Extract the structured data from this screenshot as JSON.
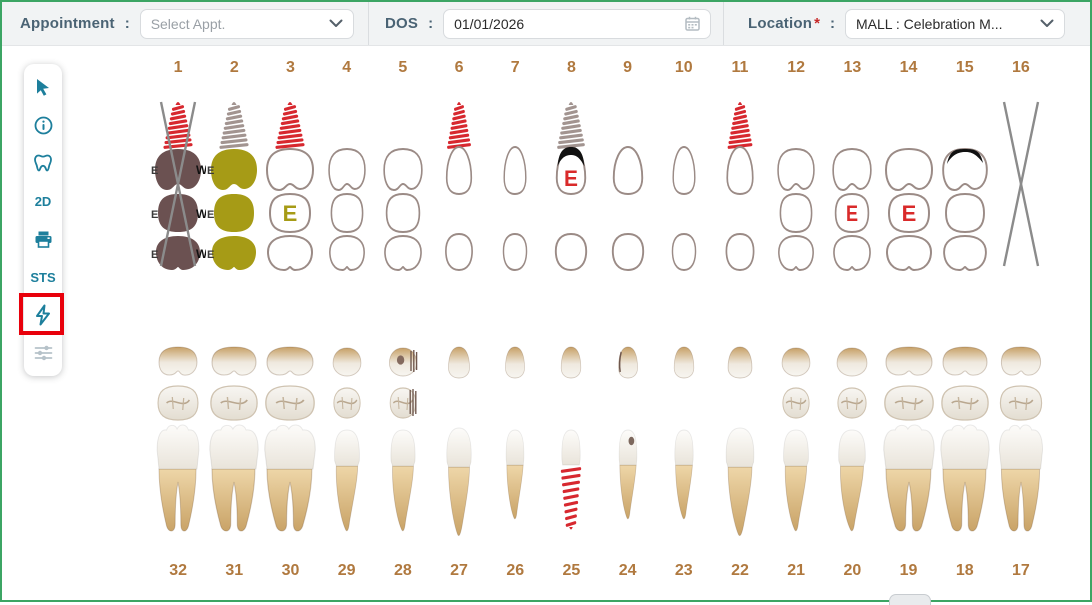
{
  "topbar": {
    "appointment": {
      "label": "Appointment",
      "colon": ":",
      "placeholder": "Select Appt."
    },
    "dos": {
      "label": "DOS",
      "colon": ":",
      "value": "01/01/2026"
    },
    "location": {
      "label": "Location",
      "required_mark": "*",
      "colon": ":",
      "value": "MALL : Celebration M..."
    }
  },
  "sidebar": {
    "items": [
      {
        "name": "pointer",
        "icon": "cursor-icon"
      },
      {
        "name": "info",
        "icon": "info-icon"
      },
      {
        "name": "tooth-chart",
        "icon": "tooth-icon"
      },
      {
        "name": "view-2d",
        "label": "2D"
      },
      {
        "name": "print",
        "icon": "printer-icon"
      },
      {
        "name": "sts",
        "label": "STS"
      },
      {
        "name": "quick-actions",
        "icon": "lightning-icon",
        "highlighted": true
      },
      {
        "name": "filters",
        "icon": "sliders-icon",
        "disabled": true
      }
    ]
  },
  "chart_upper": {
    "numbers": [
      "1",
      "2",
      "3",
      "4",
      "5",
      "6",
      "7",
      "8",
      "9",
      "10",
      "11",
      "12",
      "13",
      "14",
      "15",
      "16"
    ],
    "teeth": [
      {
        "num": "1",
        "type": "molar",
        "size": 1.0,
        "fill": "missing_brown",
        "implant": "red",
        "cross": true,
        "side_left": "E",
        "side_right": "W"
      },
      {
        "num": "2",
        "type": "molar",
        "size": 1.0,
        "fill": "olive",
        "implant": "gray",
        "side_left": "E"
      },
      {
        "num": "3",
        "type": "molar",
        "size": 1.0,
        "implant": "red",
        "occlusal_letter": "E",
        "occlusal_letter_color": "olive"
      },
      {
        "num": "4",
        "type": "premolar",
        "size": 0.78
      },
      {
        "num": "5",
        "type": "premolar",
        "size": 0.82
      },
      {
        "num": "6",
        "type": "anterior",
        "size": 0.82,
        "implant": "red"
      },
      {
        "num": "7",
        "type": "anterior",
        "size": 0.72
      },
      {
        "num": "8",
        "type": "anterior",
        "size": 0.95,
        "implant": "gray",
        "black_cap": true,
        "crown_letter": "E",
        "crown_letter_color": "letter_red"
      },
      {
        "num": "9",
        "type": "anterior",
        "size": 0.95
      },
      {
        "num": "10",
        "type": "anterior",
        "size": 0.72
      },
      {
        "num": "11",
        "type": "anterior",
        "size": 0.85,
        "implant": "red"
      },
      {
        "num": "12",
        "type": "premolar",
        "size": 0.78
      },
      {
        "num": "13",
        "type": "premolar",
        "size": 0.82,
        "occlusal_letter": "E",
        "occlusal_letter_color": "letter_red"
      },
      {
        "num": "14",
        "type": "molar",
        "size": 1.0,
        "occlusal_letter": "E",
        "occlusal_letter_color": "letter_red"
      },
      {
        "num": "15",
        "type": "molar",
        "size": 0.95,
        "black_cap": true
      },
      {
        "num": "16",
        "type": "missing",
        "cross": true
      }
    ]
  },
  "chart_lower": {
    "numbers": [
      "32",
      "31",
      "30",
      "29",
      "28",
      "27",
      "26",
      "25",
      "24",
      "23",
      "22",
      "21",
      "20",
      "19",
      "18",
      "17"
    ],
    "teeth": [
      {
        "num": "32",
        "type": "molar",
        "size": 0.95
      },
      {
        "num": "31",
        "type": "molar",
        "size": 1.1
      },
      {
        "num": "30",
        "type": "molar",
        "size": 1.15
      },
      {
        "num": "29",
        "type": "premolar",
        "size": 0.82
      },
      {
        "num": "28",
        "type": "premolar",
        "size": 0.8,
        "caries_dot_top": true,
        "hatch": true
      },
      {
        "num": "27",
        "type": "canine",
        "size": 0.75
      },
      {
        "num": "26",
        "type": "incisor",
        "size": 0.68
      },
      {
        "num": "25",
        "type": "incisor",
        "size": 0.7,
        "implant": "red"
      },
      {
        "num": "24",
        "type": "incisor",
        "size": 0.68,
        "caries_dot_crown": true,
        "edge_mark": true
      },
      {
        "num": "23",
        "type": "incisor",
        "size": 0.7
      },
      {
        "num": "22",
        "type": "canine",
        "size": 0.85
      },
      {
        "num": "21",
        "type": "premolar",
        "size": 0.82
      },
      {
        "num": "20",
        "type": "premolar",
        "size": 0.88
      },
      {
        "num": "19",
        "type": "molar",
        "size": 1.15
      },
      {
        "num": "18",
        "type": "molar",
        "size": 1.1
      },
      {
        "num": "17",
        "type": "molar",
        "size": 0.98
      }
    ]
  },
  "colors": {
    "accent_teal": "#1d7f9c",
    "number_brown": "#b0793f",
    "outline_taupe": "#9b8b86",
    "implant_red": "#d7282f",
    "implant_gray": "#a29490",
    "missing_brown": "#6b5151",
    "olive": "#a69b16",
    "letter_red": "#d92a2a",
    "cross_gray": "#8b8b8b",
    "highlight_red": "#e8000b",
    "border_green": "#3ca564"
  }
}
